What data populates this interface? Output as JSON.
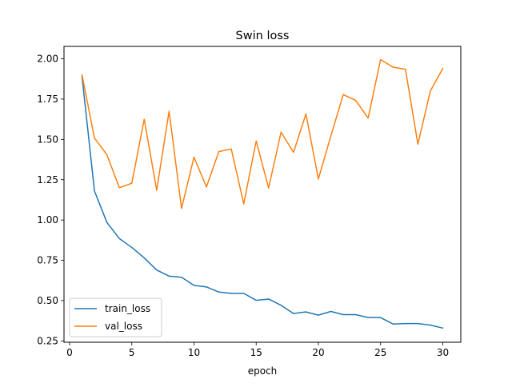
{
  "chart_data": {
    "type": "line",
    "title": "Swin loss",
    "xlabel": "epoch",
    "ylabel": "",
    "xlim": [
      -0.45,
      31.45
    ],
    "ylim": [
      0.242,
      2.077
    ],
    "x_ticks": [
      0,
      5,
      10,
      15,
      20,
      25,
      30
    ],
    "y_ticks": [
      0.25,
      0.5,
      0.75,
      1.0,
      1.25,
      1.5,
      1.75,
      2.0
    ],
    "y_tick_labels": [
      "0.25",
      "0.50",
      "0.75",
      "1.00",
      "1.25",
      "1.50",
      "1.75",
      "2.00"
    ],
    "grid": false,
    "legend_position": "lower-left",
    "x": [
      1,
      2,
      3,
      4,
      5,
      6,
      7,
      8,
      9,
      10,
      11,
      12,
      13,
      14,
      15,
      16,
      17,
      18,
      19,
      20,
      21,
      22,
      23,
      24,
      25,
      26,
      27,
      28,
      29,
      30
    ],
    "series": [
      {
        "name": "train_loss",
        "color": "#1f77b4",
        "values": [
          1.89,
          1.18,
          0.985,
          0.885,
          0.83,
          0.765,
          0.69,
          0.652,
          0.645,
          0.595,
          0.585,
          0.553,
          0.545,
          0.545,
          0.502,
          0.51,
          0.471,
          0.42,
          0.43,
          0.41,
          0.433,
          0.413,
          0.413,
          0.395,
          0.395,
          0.355,
          0.358,
          0.358,
          0.348,
          0.33
        ]
      },
      {
        "name": "val_loss",
        "color": "#ff7f0e",
        "values": [
          1.9,
          1.508,
          1.405,
          1.2,
          1.228,
          1.625,
          1.185,
          1.675,
          1.072,
          1.39,
          1.205,
          1.425,
          1.44,
          1.1,
          1.49,
          1.198,
          1.545,
          1.42,
          1.658,
          1.255,
          1.52,
          1.778,
          1.742,
          1.632,
          1.995,
          1.948,
          1.935,
          1.47,
          1.8,
          1.94
        ]
      }
    ]
  }
}
